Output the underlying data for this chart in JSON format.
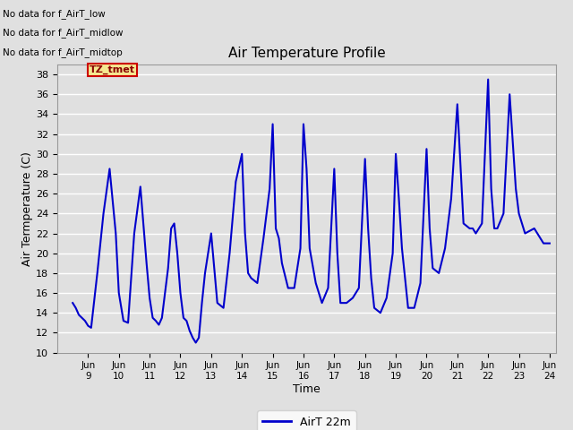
{
  "title": "Air Temperature Profile",
  "xlabel": "Time",
  "ylabel": "Air Termperature (C)",
  "xlim_days": [
    8.0,
    24.2
  ],
  "ylim": [
    10,
    39
  ],
  "yticks": [
    10,
    12,
    14,
    16,
    18,
    20,
    22,
    24,
    26,
    28,
    30,
    32,
    34,
    36,
    38
  ],
  "xtick_labels": [
    "Jun 9",
    "Jun 10",
    "Jun 11",
    "Jun 12",
    "Jun 13",
    "Jun 14",
    "Jun 15",
    "Jun 16",
    "Jun 17",
    "Jun 18",
    "Jun 19",
    "Jun 20",
    "Jun 21",
    "Jun 22",
    "Jun 23",
    "Jun 24"
  ],
  "xtick_positions": [
    9,
    10,
    11,
    12,
    13,
    14,
    15,
    16,
    17,
    18,
    19,
    20,
    21,
    22,
    23,
    24
  ],
  "line_color": "#0000cc",
  "line_width": 1.5,
  "legend_label": "AirT 22m",
  "legend_line_color": "#0000cc",
  "no_data_texts": [
    "No data for f_AirT_low",
    "No data for f_AirT_midlow",
    "No data for f_AirT_midtop"
  ],
  "tz_label": "TZ_tmet",
  "background_color": "#e0e0e0",
  "plot_bg_color": "#e0e0e0",
  "x_data": [
    8.5,
    8.6,
    8.7,
    8.8,
    8.9,
    9.0,
    9.1,
    9.3,
    9.5,
    9.7,
    9.9,
    10.0,
    10.15,
    10.3,
    10.5,
    10.7,
    10.9,
    11.0,
    11.1,
    11.2,
    11.3,
    11.4,
    11.5,
    11.6,
    11.7,
    11.8,
    11.9,
    12.0,
    12.1,
    12.2,
    12.3,
    12.4,
    12.5,
    12.6,
    12.7,
    12.8,
    12.9,
    13.0,
    13.1,
    13.2,
    13.4,
    13.6,
    13.8,
    14.0,
    14.1,
    14.2,
    14.3,
    14.5,
    14.7,
    14.9,
    15.0,
    15.1,
    15.2,
    15.3,
    15.5,
    15.7,
    15.9,
    16.0,
    16.1,
    16.2,
    16.4,
    16.6,
    16.8,
    17.0,
    17.1,
    17.2,
    17.4,
    17.6,
    17.8,
    18.0,
    18.1,
    18.2,
    18.3,
    18.5,
    18.7,
    18.9,
    19.0,
    19.1,
    19.2,
    19.4,
    19.6,
    19.8,
    20.0,
    20.1,
    20.2,
    20.4,
    20.6,
    20.8,
    21.0,
    21.1,
    21.2,
    21.4,
    21.5,
    21.6,
    21.8,
    22.0,
    22.1,
    22.2,
    22.3,
    22.5,
    22.7,
    22.9,
    23.0,
    23.2,
    23.5,
    23.8,
    24.0
  ],
  "y_data": [
    15.0,
    14.5,
    13.8,
    13.5,
    13.2,
    12.7,
    12.5,
    18.0,
    24.0,
    28.5,
    22.0,
    16.0,
    13.2,
    13.0,
    22.0,
    26.7,
    19.0,
    15.5,
    13.5,
    13.2,
    12.8,
    13.5,
    16.0,
    18.5,
    22.5,
    23.0,
    20.0,
    16.0,
    13.5,
    13.2,
    12.2,
    11.5,
    11.0,
    11.5,
    15.0,
    18.0,
    20.0,
    22.0,
    18.5,
    15.0,
    14.5,
    20.0,
    27.2,
    30.0,
    22.0,
    18.0,
    17.5,
    17.0,
    21.5,
    26.5,
    33.0,
    22.5,
    21.5,
    19.0,
    16.5,
    16.5,
    20.5,
    33.0,
    28.5,
    20.5,
    17.0,
    15.0,
    16.5,
    28.5,
    20.0,
    15.0,
    15.0,
    15.5,
    16.5,
    29.5,
    22.5,
    17.5,
    14.5,
    14.0,
    15.5,
    20.0,
    30.0,
    25.5,
    20.5,
    14.5,
    14.5,
    17.0,
    30.5,
    22.5,
    18.5,
    18.0,
    20.5,
    25.5,
    35.0,
    29.0,
    23.0,
    22.5,
    22.5,
    22.0,
    23.0,
    37.5,
    26.5,
    22.5,
    22.5,
    24.0,
    36.0,
    26.5,
    24.0,
    22.0,
    22.5,
    21.0,
    21.0
  ]
}
